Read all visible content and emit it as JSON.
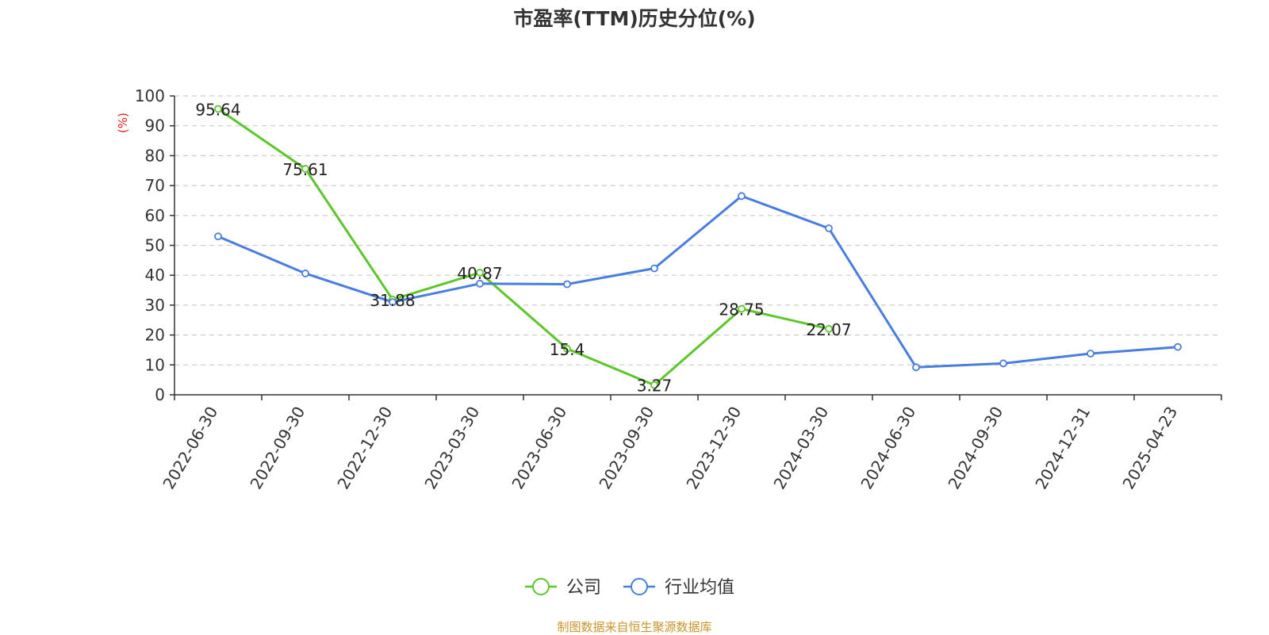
{
  "chart_data": {
    "type": "line",
    "title": "市盈率(TTM)历史分位(%)",
    "ylabel": "(%)",
    "xlabel": "",
    "ylim": [
      0,
      100
    ],
    "y_ticks": [
      0,
      10,
      20,
      30,
      40,
      50,
      60,
      70,
      80,
      90,
      100
    ],
    "grid": true,
    "legend_position": "bottom-center",
    "categories": [
      "2022-06-30",
      "2022-09-30",
      "2022-12-30",
      "2023-03-30",
      "2023-06-30",
      "2023-09-30",
      "2023-12-30",
      "2024-03-30",
      "2024-06-30",
      "2024-09-30",
      "2024-12-31",
      "2025-04-23"
    ],
    "series": [
      {
        "name": "公司",
        "color": "#5cc72a",
        "values": [
          95.64,
          75.61,
          31.88,
          40.87,
          15.4,
          3.27,
          28.75,
          22.07,
          null,
          null,
          null,
          null
        ],
        "show_labels": true
      },
      {
        "name": "行业均值",
        "color": "#4a7ede",
        "values": [
          53,
          40.6,
          31,
          37.2,
          37,
          42.3,
          66.5,
          55.7,
          9.2,
          10.5,
          13.8,
          16
        ],
        "show_labels": false
      }
    ]
  },
  "footer": "制图数据来自恒生聚源数据库"
}
